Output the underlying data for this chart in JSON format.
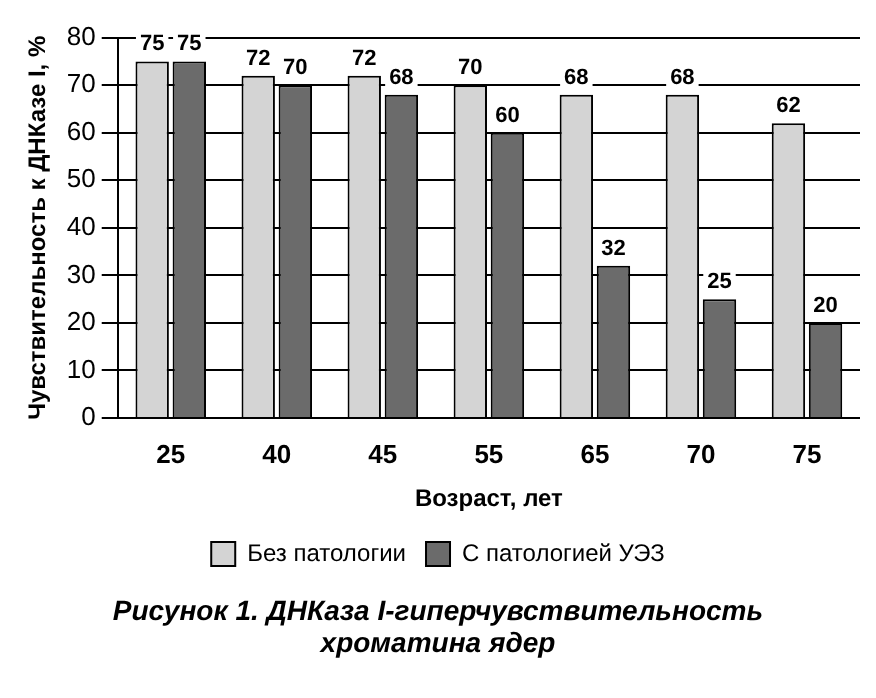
{
  "chart_data": {
    "type": "bar",
    "categories": [
      "25",
      "40",
      "45",
      "55",
      "65",
      "70",
      "75"
    ],
    "series": [
      {
        "name": "Без патологии",
        "color": "#d4d4d4",
        "values": [
          75,
          72,
          72,
          70,
          68,
          68,
          62
        ]
      },
      {
        "name": "С патологией УЭЗ",
        "color": "#6b6b6b",
        "values": [
          75,
          70,
          68,
          60,
          32,
          25,
          20
        ]
      }
    ],
    "xlabel": "Возраст, лет",
    "ylabel": "Чувствительность к ДНКазе I, %",
    "ylim": [
      0,
      80
    ],
    "yticks": [
      0,
      10,
      20,
      30,
      40,
      50,
      60,
      70,
      80
    ],
    "grid": "y",
    "legend": "bottom",
    "data_labels": true,
    "annotations": [
      "Рисунок 1. ДНКаза I-гиперчувствительность хроматина ядер"
    ]
  }
}
